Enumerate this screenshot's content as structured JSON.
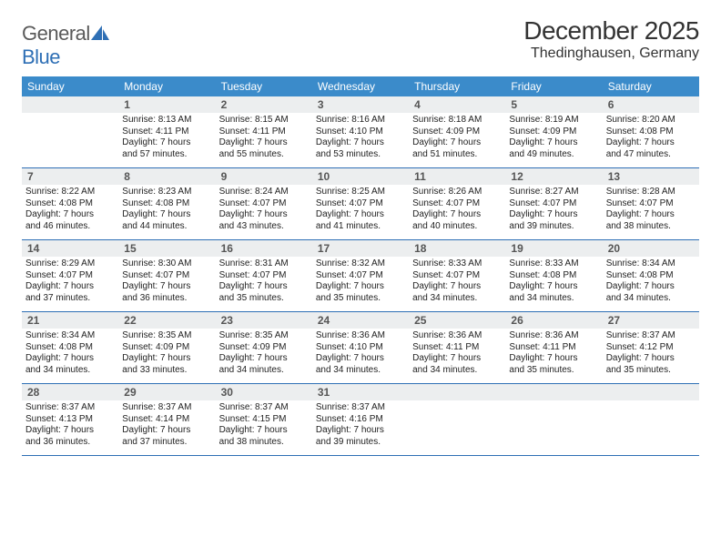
{
  "logo": {
    "text1": "General",
    "text2": "Blue"
  },
  "title": "December 2025",
  "location": "Thedinghausen, Germany",
  "colors": {
    "header_bg": "#3b8bca",
    "header_text": "#ffffff",
    "daynum_bg": "#eceeef",
    "daynum_text": "#555555",
    "rule": "#2e6fb5",
    "logo_gray": "#5a5a5a",
    "logo_blue": "#2e6fb5"
  },
  "day_headers": [
    "Sunday",
    "Monday",
    "Tuesday",
    "Wednesday",
    "Thursday",
    "Friday",
    "Saturday"
  ],
  "weeks": [
    [
      {
        "n": "",
        "l1": "",
        "l2": "",
        "l3": "",
        "l4": ""
      },
      {
        "n": "1",
        "l1": "Sunrise: 8:13 AM",
        "l2": "Sunset: 4:11 PM",
        "l3": "Daylight: 7 hours",
        "l4": "and 57 minutes."
      },
      {
        "n": "2",
        "l1": "Sunrise: 8:15 AM",
        "l2": "Sunset: 4:11 PM",
        "l3": "Daylight: 7 hours",
        "l4": "and 55 minutes."
      },
      {
        "n": "3",
        "l1": "Sunrise: 8:16 AM",
        "l2": "Sunset: 4:10 PM",
        "l3": "Daylight: 7 hours",
        "l4": "and 53 minutes."
      },
      {
        "n": "4",
        "l1": "Sunrise: 8:18 AM",
        "l2": "Sunset: 4:09 PM",
        "l3": "Daylight: 7 hours",
        "l4": "and 51 minutes."
      },
      {
        "n": "5",
        "l1": "Sunrise: 8:19 AM",
        "l2": "Sunset: 4:09 PM",
        "l3": "Daylight: 7 hours",
        "l4": "and 49 minutes."
      },
      {
        "n": "6",
        "l1": "Sunrise: 8:20 AM",
        "l2": "Sunset: 4:08 PM",
        "l3": "Daylight: 7 hours",
        "l4": "and 47 minutes."
      }
    ],
    [
      {
        "n": "7",
        "l1": "Sunrise: 8:22 AM",
        "l2": "Sunset: 4:08 PM",
        "l3": "Daylight: 7 hours",
        "l4": "and 46 minutes."
      },
      {
        "n": "8",
        "l1": "Sunrise: 8:23 AM",
        "l2": "Sunset: 4:08 PM",
        "l3": "Daylight: 7 hours",
        "l4": "and 44 minutes."
      },
      {
        "n": "9",
        "l1": "Sunrise: 8:24 AM",
        "l2": "Sunset: 4:07 PM",
        "l3": "Daylight: 7 hours",
        "l4": "and 43 minutes."
      },
      {
        "n": "10",
        "l1": "Sunrise: 8:25 AM",
        "l2": "Sunset: 4:07 PM",
        "l3": "Daylight: 7 hours",
        "l4": "and 41 minutes."
      },
      {
        "n": "11",
        "l1": "Sunrise: 8:26 AM",
        "l2": "Sunset: 4:07 PM",
        "l3": "Daylight: 7 hours",
        "l4": "and 40 minutes."
      },
      {
        "n": "12",
        "l1": "Sunrise: 8:27 AM",
        "l2": "Sunset: 4:07 PM",
        "l3": "Daylight: 7 hours",
        "l4": "and 39 minutes."
      },
      {
        "n": "13",
        "l1": "Sunrise: 8:28 AM",
        "l2": "Sunset: 4:07 PM",
        "l3": "Daylight: 7 hours",
        "l4": "and 38 minutes."
      }
    ],
    [
      {
        "n": "14",
        "l1": "Sunrise: 8:29 AM",
        "l2": "Sunset: 4:07 PM",
        "l3": "Daylight: 7 hours",
        "l4": "and 37 minutes."
      },
      {
        "n": "15",
        "l1": "Sunrise: 8:30 AM",
        "l2": "Sunset: 4:07 PM",
        "l3": "Daylight: 7 hours",
        "l4": "and 36 minutes."
      },
      {
        "n": "16",
        "l1": "Sunrise: 8:31 AM",
        "l2": "Sunset: 4:07 PM",
        "l3": "Daylight: 7 hours",
        "l4": "and 35 minutes."
      },
      {
        "n": "17",
        "l1": "Sunrise: 8:32 AM",
        "l2": "Sunset: 4:07 PM",
        "l3": "Daylight: 7 hours",
        "l4": "and 35 minutes."
      },
      {
        "n": "18",
        "l1": "Sunrise: 8:33 AM",
        "l2": "Sunset: 4:07 PM",
        "l3": "Daylight: 7 hours",
        "l4": "and 34 minutes."
      },
      {
        "n": "19",
        "l1": "Sunrise: 8:33 AM",
        "l2": "Sunset: 4:08 PM",
        "l3": "Daylight: 7 hours",
        "l4": "and 34 minutes."
      },
      {
        "n": "20",
        "l1": "Sunrise: 8:34 AM",
        "l2": "Sunset: 4:08 PM",
        "l3": "Daylight: 7 hours",
        "l4": "and 34 minutes."
      }
    ],
    [
      {
        "n": "21",
        "l1": "Sunrise: 8:34 AM",
        "l2": "Sunset: 4:08 PM",
        "l3": "Daylight: 7 hours",
        "l4": "and 34 minutes."
      },
      {
        "n": "22",
        "l1": "Sunrise: 8:35 AM",
        "l2": "Sunset: 4:09 PM",
        "l3": "Daylight: 7 hours",
        "l4": "and 33 minutes."
      },
      {
        "n": "23",
        "l1": "Sunrise: 8:35 AM",
        "l2": "Sunset: 4:09 PM",
        "l3": "Daylight: 7 hours",
        "l4": "and 34 minutes."
      },
      {
        "n": "24",
        "l1": "Sunrise: 8:36 AM",
        "l2": "Sunset: 4:10 PM",
        "l3": "Daylight: 7 hours",
        "l4": "and 34 minutes."
      },
      {
        "n": "25",
        "l1": "Sunrise: 8:36 AM",
        "l2": "Sunset: 4:11 PM",
        "l3": "Daylight: 7 hours",
        "l4": "and 34 minutes."
      },
      {
        "n": "26",
        "l1": "Sunrise: 8:36 AM",
        "l2": "Sunset: 4:11 PM",
        "l3": "Daylight: 7 hours",
        "l4": "and 35 minutes."
      },
      {
        "n": "27",
        "l1": "Sunrise: 8:37 AM",
        "l2": "Sunset: 4:12 PM",
        "l3": "Daylight: 7 hours",
        "l4": "and 35 minutes."
      }
    ],
    [
      {
        "n": "28",
        "l1": "Sunrise: 8:37 AM",
        "l2": "Sunset: 4:13 PM",
        "l3": "Daylight: 7 hours",
        "l4": "and 36 minutes."
      },
      {
        "n": "29",
        "l1": "Sunrise: 8:37 AM",
        "l2": "Sunset: 4:14 PM",
        "l3": "Daylight: 7 hours",
        "l4": "and 37 minutes."
      },
      {
        "n": "30",
        "l1": "Sunrise: 8:37 AM",
        "l2": "Sunset: 4:15 PM",
        "l3": "Daylight: 7 hours",
        "l4": "and 38 minutes."
      },
      {
        "n": "31",
        "l1": "Sunrise: 8:37 AM",
        "l2": "Sunset: 4:16 PM",
        "l3": "Daylight: 7 hours",
        "l4": "and 39 minutes."
      },
      {
        "n": "",
        "l1": "",
        "l2": "",
        "l3": "",
        "l4": ""
      },
      {
        "n": "",
        "l1": "",
        "l2": "",
        "l3": "",
        "l4": ""
      },
      {
        "n": "",
        "l1": "",
        "l2": "",
        "l3": "",
        "l4": ""
      }
    ]
  ]
}
